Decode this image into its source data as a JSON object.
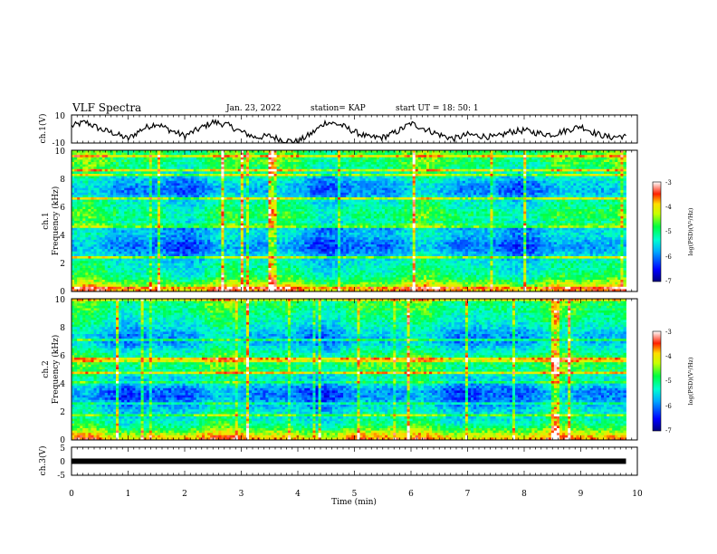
{
  "header": {
    "title": "VLF Spectra",
    "date": "Jan. 23, 2022",
    "station": "station= KAP",
    "start": "start  UT =   18: 50: 1"
  },
  "chart_data": [
    {
      "type": "line",
      "id": "ch1-waveform",
      "ylabel": "ch.1(V)",
      "ylim": [
        -10,
        10
      ],
      "yticks": [
        "10",
        "-10"
      ],
      "xlim": [
        0,
        10
      ],
      "x": [
        0,
        0.25,
        0.5,
        0.75,
        1.0,
        1.25,
        1.5,
        1.75,
        2.0,
        2.25,
        2.5,
        2.75,
        3.0,
        3.25,
        3.5,
        3.75,
        4.0,
        4.25,
        4.5,
        4.75,
        5.0,
        5.25,
        5.5,
        5.75,
        6.0,
        6.25,
        6.5,
        6.75,
        7.0,
        7.25,
        7.5,
        7.75,
        8.0,
        8.25,
        8.5,
        8.75,
        9.0,
        9.25,
        9.5,
        9.75,
        9.8
      ],
      "values": [
        2,
        5,
        0,
        -3,
        -7,
        0,
        4,
        -1,
        -5,
        0,
        5,
        3,
        -2,
        -6,
        -5,
        -8,
        -9,
        -3,
        5,
        3,
        -2,
        -6,
        -6,
        -2,
        4,
        0,
        -4,
        -7,
        -4,
        -5,
        -6,
        -2,
        -1,
        -3,
        -4,
        -1,
        2,
        -3,
        -6,
        -5,
        -6
      ]
    },
    {
      "type": "heatmap",
      "id": "ch1-spectrogram",
      "ylabel": "ch.1\nFrequency (kHz)",
      "ylim": [
        0,
        10
      ],
      "yticks": [
        "0",
        "2",
        "4",
        "6",
        "8",
        "10"
      ],
      "xlim": [
        0,
        9.8
      ],
      "colorbar": {
        "label": "log(PSD)(V²/Hz)",
        "range": [
          -7,
          -3
        ],
        "ticks": [
          "-3",
          "-4",
          "-5",
          "-6",
          "-7"
        ]
      },
      "frequency_profile_khz": [
        0,
        0.5,
        1,
        1.5,
        2,
        2.5,
        3,
        3.5,
        4,
        4.5,
        5,
        5.5,
        6,
        6.5,
        7,
        7.5,
        8,
        8.5,
        9,
        9.5,
        10
      ],
      "log_psd_profile": [
        -3.6,
        -4.4,
        -5.0,
        -5.2,
        -5.3,
        -5.6,
        -6.0,
        -5.9,
        -5.6,
        -5.7,
        -5.1,
        -4.9,
        -5.2,
        -5.3,
        -5.9,
        -5.8,
        -5.5,
        -5.1,
        -4.9,
        -4.8,
        -4.7
      ]
    },
    {
      "type": "heatmap",
      "id": "ch2-spectrogram",
      "ylabel": "ch.2\nFrequency (kHz)",
      "ylim": [
        0,
        10
      ],
      "yticks": [
        "0",
        "2",
        "4",
        "6",
        "8",
        "10"
      ],
      "xlim": [
        0,
        9.8
      ],
      "colorbar": {
        "label": "log(PSD)(V²/Hz)",
        "range": [
          -7,
          -3
        ],
        "ticks": [
          "-3",
          "-4",
          "-5",
          "-6",
          "-7"
        ]
      },
      "frequency_profile_khz": [
        0,
        0.5,
        1,
        1.5,
        2,
        2.5,
        3,
        3.5,
        4,
        4.5,
        5,
        5.5,
        6,
        6.5,
        7,
        7.5,
        8,
        8.5,
        9,
        9.5,
        10
      ],
      "log_psd_profile": [
        -3.6,
        -4.3,
        -5.0,
        -5.3,
        -5.4,
        -5.7,
        -6.0,
        -6.0,
        -5.5,
        -5.3,
        -4.9,
        -4.8,
        -5.0,
        -5.4,
        -5.8,
        -5.7,
        -5.4,
        -5.2,
        -5.0,
        -4.9,
        -4.8
      ]
    },
    {
      "type": "line",
      "id": "ch3-waveform",
      "ylabel": "ch.3(V)",
      "ylim": [
        -5,
        5
      ],
      "yticks": [
        "5",
        "0",
        "-5"
      ],
      "xlim": [
        0,
        10
      ],
      "x": [
        0,
        9.8
      ],
      "values": [
        0,
        0
      ]
    }
  ],
  "x_axis": {
    "label": "Time (min)",
    "ticks": [
      "0",
      "1",
      "2",
      "3",
      "4",
      "5",
      "6",
      "7",
      "8",
      "9",
      "10"
    ]
  },
  "colors": {
    "axis": "#000000",
    "background": "#ffffff"
  }
}
